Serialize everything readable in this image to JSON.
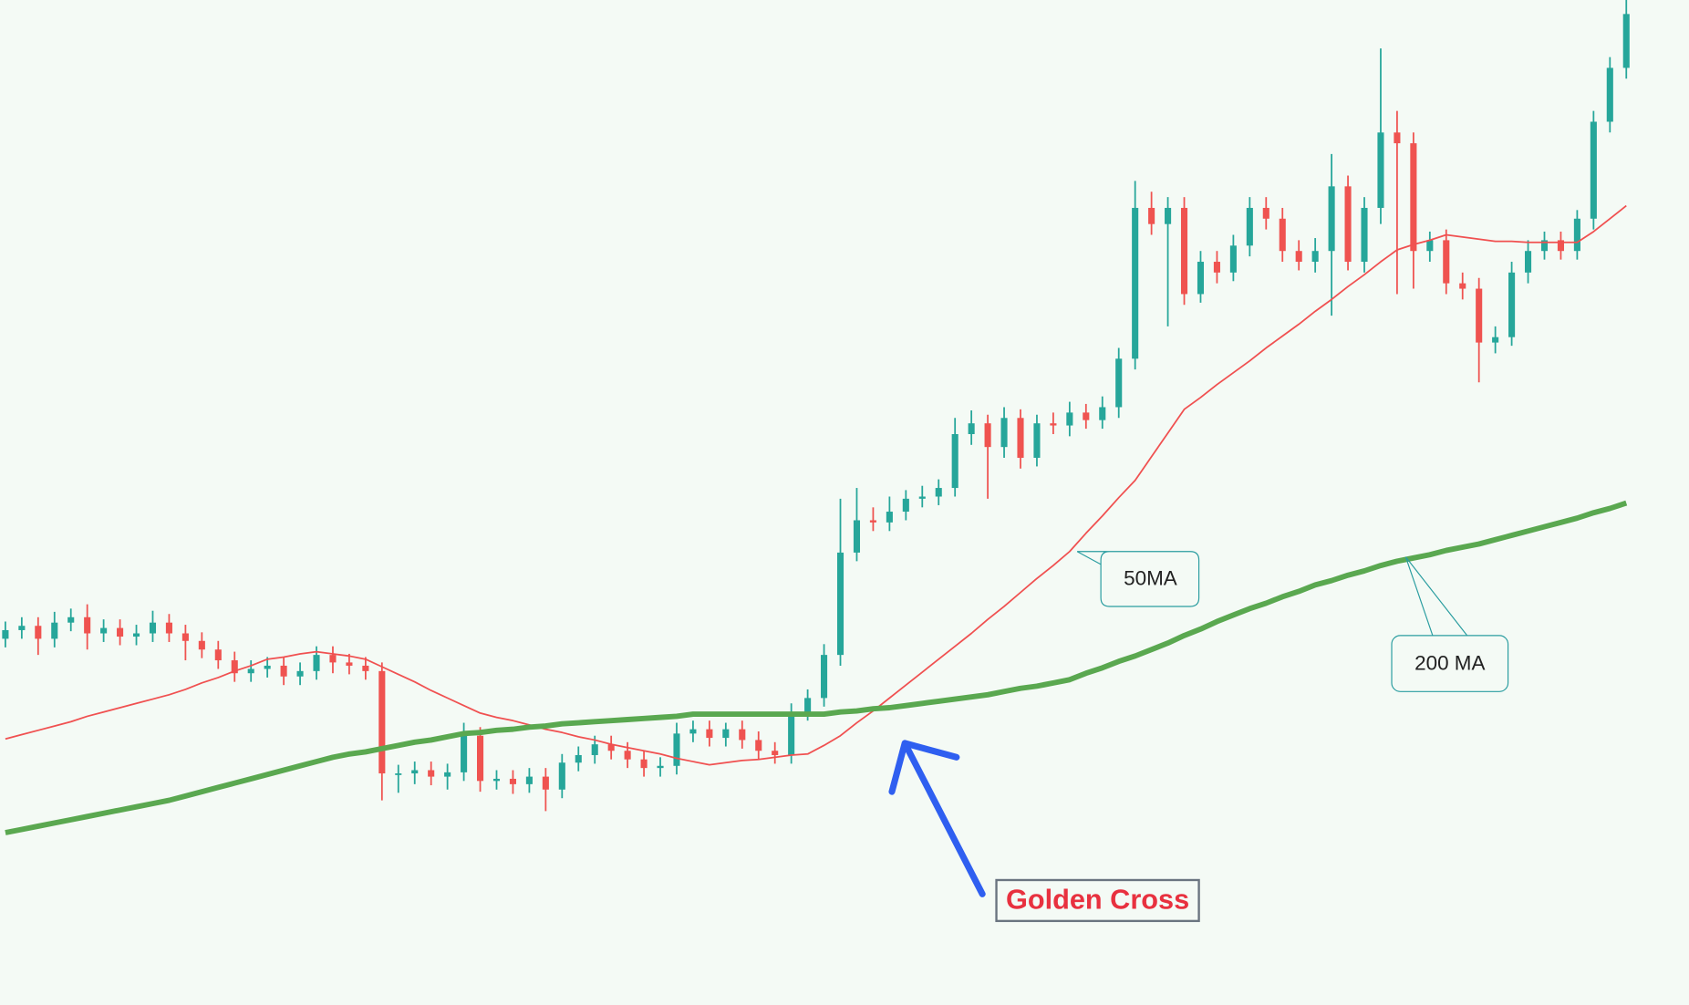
{
  "chart_data": {
    "type": "candlestick",
    "up_color": "#26a69a",
    "down_color": "#ef5350",
    "open": [
      340,
      348,
      352,
      340,
      355,
      360,
      345,
      350,
      342,
      345,
      355,
      345,
      338,
      330,
      320,
      308,
      312,
      315,
      305,
      310,
      325,
      318,
      315,
      310,
      215,
      215,
      218,
      212,
      216,
      250,
      208,
      210,
      205,
      212,
      200,
      225,
      232,
      242,
      236,
      228,
      220,
      222,
      252,
      256,
      248,
      256,
      246,
      236,
      232,
      272,
      285,
      325,
      420,
      450,
      448,
      458,
      470,
      472,
      480,
      530,
      540,
      518,
      545,
      508,
      540,
      538,
      550,
      543,
      555,
      600,
      740,
      725,
      740,
      660,
      690,
      680,
      705,
      740,
      730,
      700,
      690,
      700,
      760,
      690,
      740,
      810,
      800,
      700,
      710,
      670,
      665,
      615,
      620,
      680,
      700,
      710,
      700,
      730,
      820,
      870
    ],
    "high": [
      356,
      360,
      360,
      365,
      368,
      372,
      358,
      358,
      353,
      366,
      363,
      353,
      346,
      338,
      328,
      320,
      323,
      323,
      318,
      333,
      333,
      326,
      323,
      318,
      223,
      226,
      226,
      224,
      262,
      258,
      218,
      218,
      220,
      220,
      233,
      240,
      250,
      250,
      244,
      236,
      230,
      262,
      264,
      264,
      262,
      264,
      254,
      244,
      280,
      293,
      335,
      470,
      480,
      462,
      472,
      478,
      482,
      488,
      545,
      552,
      548,
      555,
      553,
      548,
      550,
      560,
      558,
      565,
      610,
      765,
      755,
      750,
      750,
      700,
      700,
      715,
      750,
      750,
      740,
      710,
      712,
      790,
      770,
      750,
      888,
      830,
      810,
      718,
      720,
      680,
      675,
      630,
      690,
      710,
      718,
      718,
      738,
      830,
      880,
      933
    ],
    "low": [
      332,
      340,
      325,
      332,
      347,
      330,
      337,
      334,
      334,
      337,
      337,
      320,
      322,
      312,
      300,
      300,
      304,
      297,
      297,
      302,
      308,
      307,
      302,
      190,
      197,
      205,
      204,
      200,
      208,
      198,
      200,
      196,
      197,
      180,
      192,
      217,
      224,
      228,
      220,
      212,
      212,
      214,
      244,
      240,
      240,
      238,
      228,
      224,
      224,
      264,
      277,
      315,
      412,
      440,
      440,
      450,
      462,
      464,
      472,
      520,
      470,
      508,
      498,
      500,
      530,
      528,
      535,
      535,
      545,
      590,
      715,
      630,
      650,
      652,
      670,
      672,
      695,
      720,
      690,
      682,
      680,
      640,
      682,
      680,
      725,
      660,
      665,
      690,
      660,
      655,
      578,
      605,
      612,
      670,
      692,
      692,
      692,
      720,
      810,
      860
    ],
    "close": [
      348,
      352,
      340,
      355,
      360,
      345,
      350,
      342,
      345,
      355,
      345,
      338,
      330,
      320,
      308,
      312,
      315,
      305,
      310,
      325,
      318,
      315,
      310,
      215,
      215,
      218,
      212,
      216,
      250,
      208,
      210,
      205,
      212,
      200,
      225,
      232,
      242,
      236,
      228,
      220,
      222,
      252,
      256,
      248,
      256,
      246,
      236,
      232,
      272,
      285,
      325,
      420,
      450,
      448,
      458,
      470,
      472,
      480,
      530,
      540,
      518,
      545,
      508,
      540,
      538,
      550,
      543,
      555,
      600,
      740,
      725,
      740,
      660,
      690,
      680,
      705,
      740,
      730,
      700,
      690,
      700,
      760,
      690,
      740,
      810,
      800,
      700,
      710,
      670,
      665,
      615,
      620,
      680,
      700,
      710,
      700,
      730,
      820,
      870,
      920
    ],
    "series": [
      {
        "name": "50MA",
        "color": "#f05050",
        "values": [
          247,
          251,
          255,
          259,
          263,
          268,
          272,
          276,
          280,
          284,
          288,
          293,
          299,
          304,
          310,
          315,
          321,
          323,
          326,
          328,
          326,
          324,
          321,
          314,
          307,
          300,
          292,
          285,
          278,
          271,
          267,
          264,
          260,
          256,
          253,
          249,
          246,
          242,
          239,
          236,
          233,
          229,
          226,
          223,
          225,
          227,
          228,
          230,
          232,
          233,
          241,
          250,
          262,
          273,
          285,
          297,
          309,
          321,
          333,
          345,
          358,
          370,
          383,
          396,
          408,
          421,
          438,
          454,
          471,
          487,
          509,
          531,
          553,
          564,
          576,
          587,
          598,
          610,
          621,
          632,
          644,
          655,
          667,
          678,
          690,
          701,
          706,
          710,
          715,
          713,
          711,
          709,
          709,
          708,
          708,
          708,
          708,
          718,
          730,
          742
        ]
      },
      {
        "name": "200 MA",
        "color": "#5aa850",
        "values": [
          160,
          163,
          166,
          169,
          172,
          175,
          178,
          181,
          184,
          187,
          190,
          194,
          198,
          202,
          206,
          210,
          214,
          218,
          222,
          226,
          230,
          233,
          235,
          238,
          241,
          244,
          246,
          249,
          252,
          253,
          255,
          256,
          258,
          259,
          261,
          262,
          263,
          264,
          265,
          266,
          267,
          268,
          270,
          270,
          270,
          270,
          270,
          270,
          270,
          270,
          270,
          272,
          273,
          275,
          276,
          278,
          280,
          282,
          284,
          286,
          288,
          291,
          294,
          296,
          299,
          302,
          308,
          313,
          319,
          324,
          330,
          336,
          343,
          349,
          356,
          362,
          368,
          373,
          379,
          384,
          390,
          394,
          399,
          403,
          408,
          412,
          415,
          418,
          422,
          425,
          428,
          432,
          436,
          440,
          444,
          448,
          452,
          457,
          461,
          466
        ]
      }
    ],
    "annotation": "Golden Cross"
  }
}
